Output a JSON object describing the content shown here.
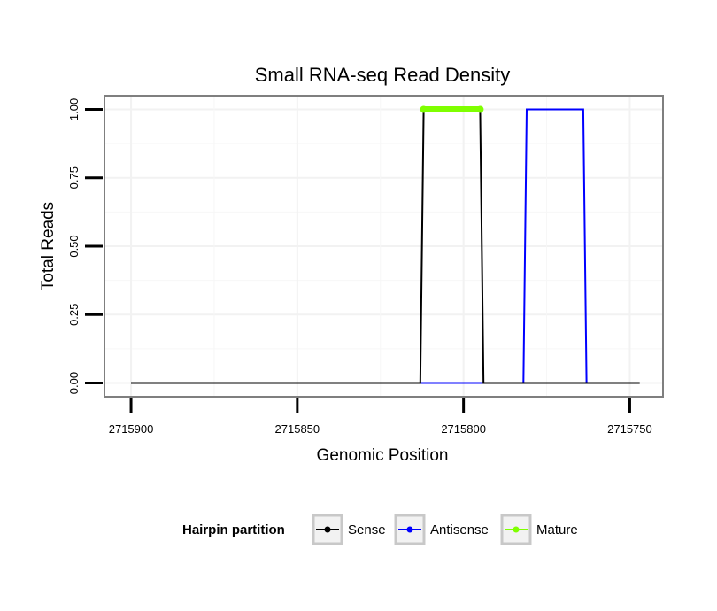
{
  "chart_data": {
    "type": "line",
    "title": "Small RNA-seq Read Density",
    "xlabel": "Genomic Position",
    "ylabel": "Total Reads",
    "x_reversed": true,
    "xlim": [
      2715908,
      2715740
    ],
    "ylim": [
      -0.05,
      1.05
    ],
    "x_ticks": [
      2715900,
      2715850,
      2715800,
      2715750
    ],
    "x_tick_labels": [
      "2715900",
      "2715850",
      "2715800",
      "2715750"
    ],
    "y_ticks": [
      0,
      0.25,
      0.5,
      0.75,
      1.0
    ],
    "y_tick_labels": [
      "0.00",
      "0.25",
      "0.50",
      "0.75",
      "1.00"
    ],
    "grid": true,
    "legend": {
      "title": "Hairpin partition",
      "position": "bottom",
      "entries": [
        "Sense",
        "Antisense",
        "Mature"
      ]
    },
    "series": [
      {
        "name": "Antisense",
        "color": "#0000ff",
        "x": [
          2715813,
          2715782,
          2715781,
          2715764,
          2715763
        ],
        "y": [
          0,
          0,
          1,
          1,
          0
        ]
      },
      {
        "name": "Sense",
        "color": "#000000",
        "x": [
          2715900,
          2715813,
          2715812,
          2715795,
          2715794,
          2715747
        ],
        "y": [
          0,
          0,
          1,
          1,
          0,
          0
        ]
      },
      {
        "name": "Mature",
        "color": "#7fff00",
        "x": [
          2715812,
          2715795
        ],
        "y": [
          1,
          1
        ],
        "markers": true
      }
    ]
  }
}
